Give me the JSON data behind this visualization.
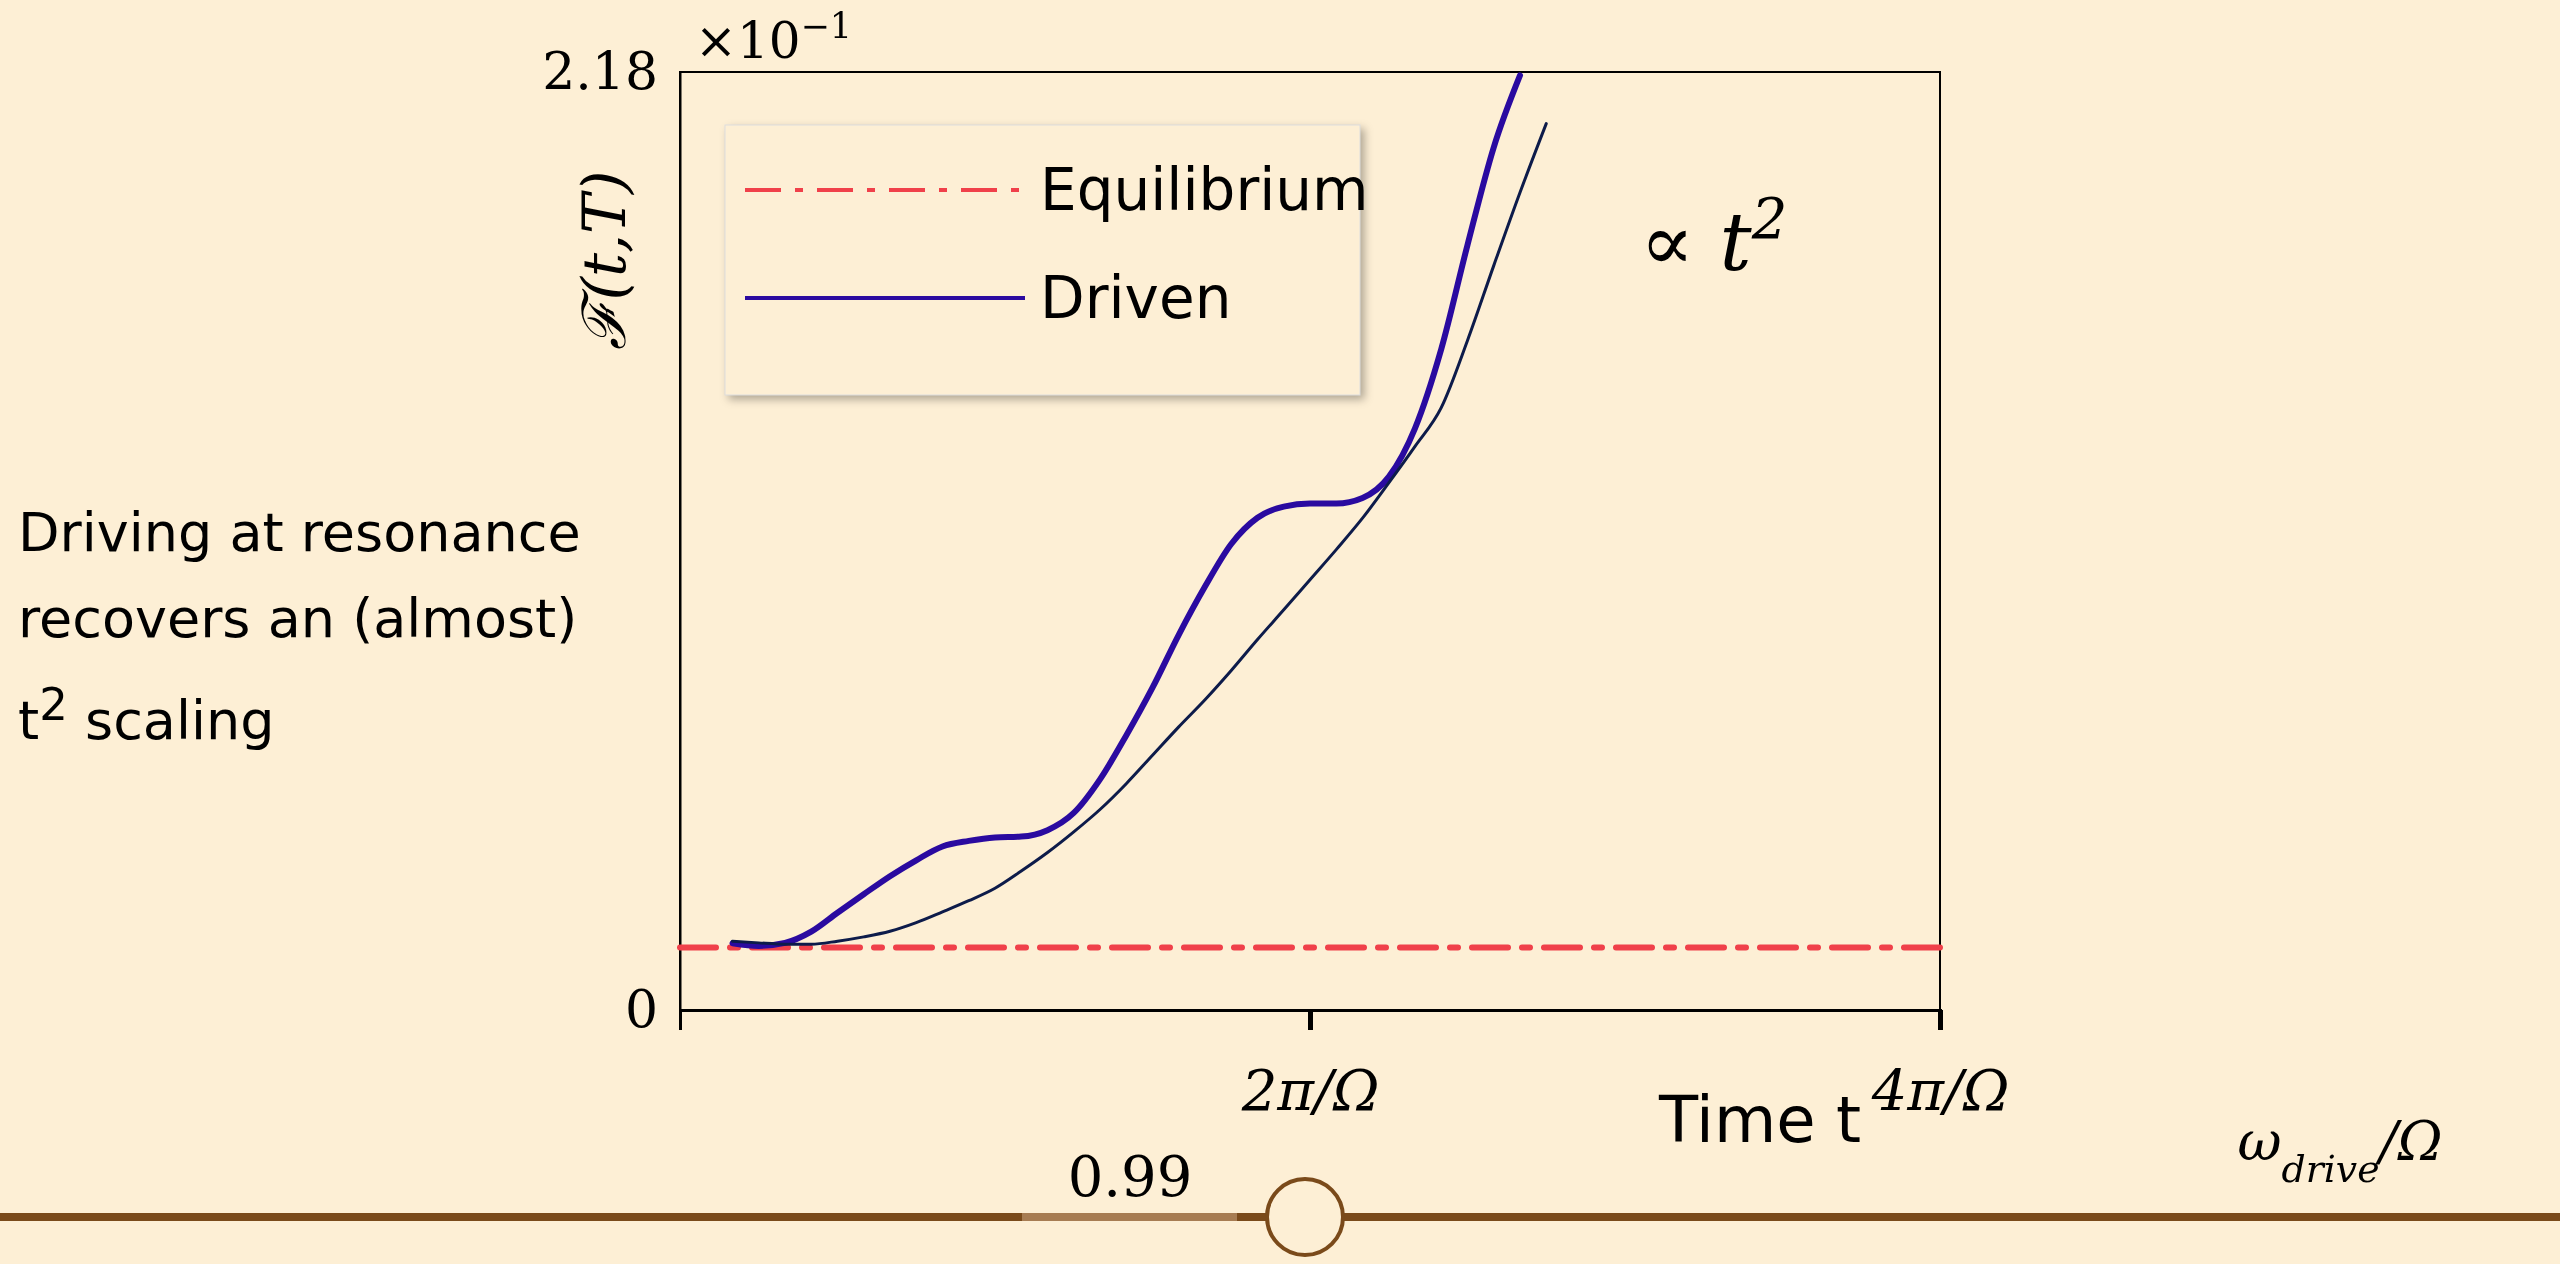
{
  "chart_data": {
    "type": "line",
    "xlabel": "Time t",
    "ylabel": "ℱ(t,T)",
    "categories": [
      null,
      null,
      null,
      null,
      null,
      null,
      null,
      null,
      null,
      null,
      null,
      null,
      null,
      null,
      null,
      null,
      null,
      null,
      null,
      null,
      null,
      null,
      null,
      null,
      "2π/Ω",
      null,
      null,
      null,
      null,
      null,
      null,
      null,
      null,
      null,
      null,
      null,
      null,
      null,
      null,
      null,
      null,
      null,
      null,
      null,
      null,
      null,
      null,
      null,
      "4π/Ω"
    ],
    "ylim": [
      0,
      2.18
    ],
    "yticks": [
      0,
      2.18
    ],
    "legend": "top left",
    "grid": false,
    "series": [
      {
        "name": "Equilibrium",
        "color": "#f0404a",
        "line_style": "dashdot",
        "values": [
          0.145,
          0.145,
          0.145,
          0.145,
          0.145,
          0.145,
          0.145,
          0.145,
          0.145,
          0.145,
          0.145,
          0.145,
          0.145,
          0.145,
          0.145,
          0.145,
          0.145,
          0.145,
          0.145,
          0.145,
          0.145,
          0.145,
          0.145,
          0.145,
          0.145,
          0.145,
          0.145,
          0.145,
          0.145,
          0.145,
          0.145,
          0.145,
          0.145,
          0.145,
          0.145,
          0.145,
          0.145,
          0.145,
          0.145,
          0.145,
          0.145,
          0.145,
          0.145,
          0.145,
          0.145,
          0.145,
          0.145,
          0.145,
          0.145
        ]
      },
      {
        "name": "Driven",
        "color": "#2a0aa0",
        "line_style": "solid",
        "values": [
          null,
          null,
          0.155,
          0.149,
          0.156,
          0.182,
          0.226,
          0.269,
          0.311,
          0.348,
          0.38,
          0.393,
          0.401,
          0.403,
          0.418,
          0.458,
          0.536,
          0.638,
          0.749,
          0.872,
          0.984,
          1.083,
          1.144,
          1.17,
          1.177,
          1.177,
          1.19,
          1.239,
          1.352,
          1.536,
          1.778,
          2.005,
          2.172,
          null,
          null,
          null,
          null,
          null,
          null,
          null,
          null,
          null,
          null,
          null,
          null,
          null,
          null,
          null,
          null
        ]
      },
      {
        "color": "#0d1b4a",
        "line_style": "solid",
        "values": [
          null,
          null,
          0.16,
          0.156,
          0.153,
          0.153,
          0.16,
          0.17,
          0.183,
          0.203,
          0.228,
          0.254,
          0.283,
          0.323,
          0.366,
          0.414,
          0.466,
          0.526,
          0.592,
          0.658,
          0.721,
          0.789,
          0.861,
          0.93,
          1.0,
          1.07,
          1.143,
          1.225,
          1.31,
          1.4,
          1.556,
          1.73,
          1.9,
          2.06,
          null,
          null,
          null,
          null,
          null,
          null,
          null,
          null,
          null,
          null,
          null,
          null,
          null,
          null,
          null
        ]
      }
    ],
    "annotations": [
      "×10$^{−1}$",
      "∝ t$^{2}$",
      "Driving at resonance recovers an (almost) t$^{2}$ scaling",
      "0.99",
      "ω$_{drive}$/Ω"
    ]
  }
}
